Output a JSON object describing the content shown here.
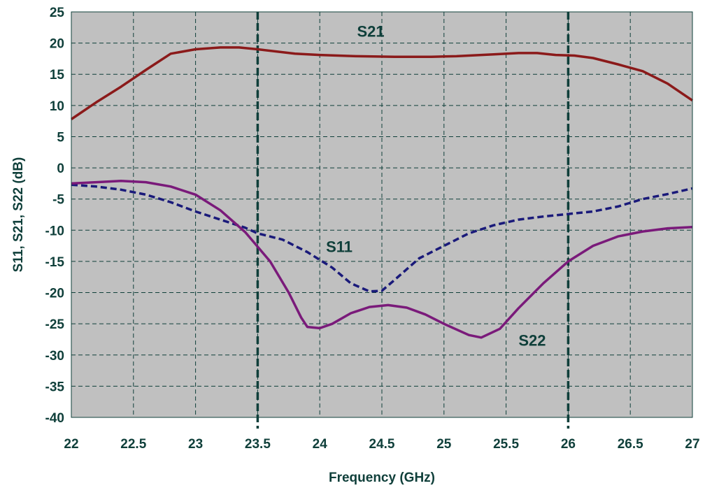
{
  "chart_data": {
    "type": "line",
    "xlabel": "Frequency (GHz)",
    "ylabel": "S11, S21, S22 (dB)",
    "xlim": [
      22,
      27
    ],
    "ylim": [
      -40,
      25
    ],
    "x_ticks": [
      "22",
      "22.5",
      "23",
      "23.5",
      "24",
      "24.5",
      "25",
      "25.5",
      "26",
      "26.5",
      "27"
    ],
    "y_ticks": [
      "25",
      "20",
      "15",
      "10",
      "5",
      "0",
      "-5",
      "-10",
      "-15",
      "-20",
      "-25",
      "-30",
      "-35",
      "-40"
    ],
    "grid": true,
    "plot_background": "#c0c0c0",
    "grid_color": "#0f3f3a",
    "band_markers_x": [
      23.5,
      26
    ],
    "series": [
      {
        "name": "S21",
        "color": "#8b1a1a",
        "style": "solid",
        "label_at": [
          24.3,
          21
        ],
        "points": [
          [
            22.0,
            7.8
          ],
          [
            22.2,
            10.5
          ],
          [
            22.4,
            13.0
          ],
          [
            22.6,
            15.7
          ],
          [
            22.8,
            18.3
          ],
          [
            23.0,
            19.0
          ],
          [
            23.2,
            19.3
          ],
          [
            23.35,
            19.3
          ],
          [
            23.5,
            19.0
          ],
          [
            23.8,
            18.3
          ],
          [
            24.0,
            18.1
          ],
          [
            24.3,
            17.9
          ],
          [
            24.6,
            17.8
          ],
          [
            24.9,
            17.8
          ],
          [
            25.1,
            17.9
          ],
          [
            25.4,
            18.2
          ],
          [
            25.6,
            18.4
          ],
          [
            25.75,
            18.4
          ],
          [
            25.9,
            18.1
          ],
          [
            26.05,
            18.0
          ],
          [
            26.2,
            17.6
          ],
          [
            26.4,
            16.6
          ],
          [
            26.6,
            15.5
          ],
          [
            26.8,
            13.5
          ],
          [
            27.0,
            10.8
          ]
        ]
      },
      {
        "name": "S11",
        "color": "#1a1a7a",
        "style": "dashed",
        "label_at": [
          24.05,
          -13.5
        ],
        "points": [
          [
            22.0,
            -2.7
          ],
          [
            22.2,
            -3.0
          ],
          [
            22.4,
            -3.5
          ],
          [
            22.6,
            -4.3
          ],
          [
            22.8,
            -5.5
          ],
          [
            23.0,
            -7.0
          ],
          [
            23.2,
            -8.3
          ],
          [
            23.4,
            -9.6
          ],
          [
            23.5,
            -10.5
          ],
          [
            23.7,
            -11.5
          ],
          [
            23.9,
            -13.5
          ],
          [
            24.1,
            -16.0
          ],
          [
            24.25,
            -18.5
          ],
          [
            24.4,
            -19.8
          ],
          [
            24.5,
            -19.7
          ],
          [
            24.6,
            -18.0
          ],
          [
            24.8,
            -14.5
          ],
          [
            25.0,
            -12.5
          ],
          [
            25.2,
            -10.5
          ],
          [
            25.4,
            -9.2
          ],
          [
            25.6,
            -8.3
          ],
          [
            25.8,
            -7.8
          ],
          [
            26.0,
            -7.4
          ],
          [
            26.2,
            -7.0
          ],
          [
            26.4,
            -6.2
          ],
          [
            26.6,
            -5.0
          ],
          [
            26.8,
            -4.2
          ],
          [
            27.0,
            -3.3
          ]
        ]
      },
      {
        "name": "S22",
        "color": "#7a1a7a",
        "style": "solid",
        "label_at": [
          25.6,
          -28.5
        ],
        "points": [
          [
            22.0,
            -2.5
          ],
          [
            22.2,
            -2.3
          ],
          [
            22.4,
            -2.1
          ],
          [
            22.6,
            -2.3
          ],
          [
            22.8,
            -3.0
          ],
          [
            23.0,
            -4.3
          ],
          [
            23.2,
            -6.8
          ],
          [
            23.4,
            -10.3
          ],
          [
            23.6,
            -15.0
          ],
          [
            23.75,
            -20.0
          ],
          [
            23.85,
            -24.0
          ],
          [
            23.9,
            -25.5
          ],
          [
            24.0,
            -25.7
          ],
          [
            24.1,
            -25.0
          ],
          [
            24.25,
            -23.3
          ],
          [
            24.4,
            -22.3
          ],
          [
            24.55,
            -22.0
          ],
          [
            24.7,
            -22.4
          ],
          [
            24.85,
            -23.5
          ],
          [
            25.0,
            -25.0
          ],
          [
            25.2,
            -26.8
          ],
          [
            25.3,
            -27.2
          ],
          [
            25.45,
            -25.8
          ],
          [
            25.6,
            -22.5
          ],
          [
            25.8,
            -18.5
          ],
          [
            26.0,
            -15.0
          ],
          [
            26.2,
            -12.5
          ],
          [
            26.4,
            -11.0
          ],
          [
            26.6,
            -10.2
          ],
          [
            26.8,
            -9.7
          ],
          [
            27.0,
            -9.5
          ]
        ]
      }
    ]
  }
}
